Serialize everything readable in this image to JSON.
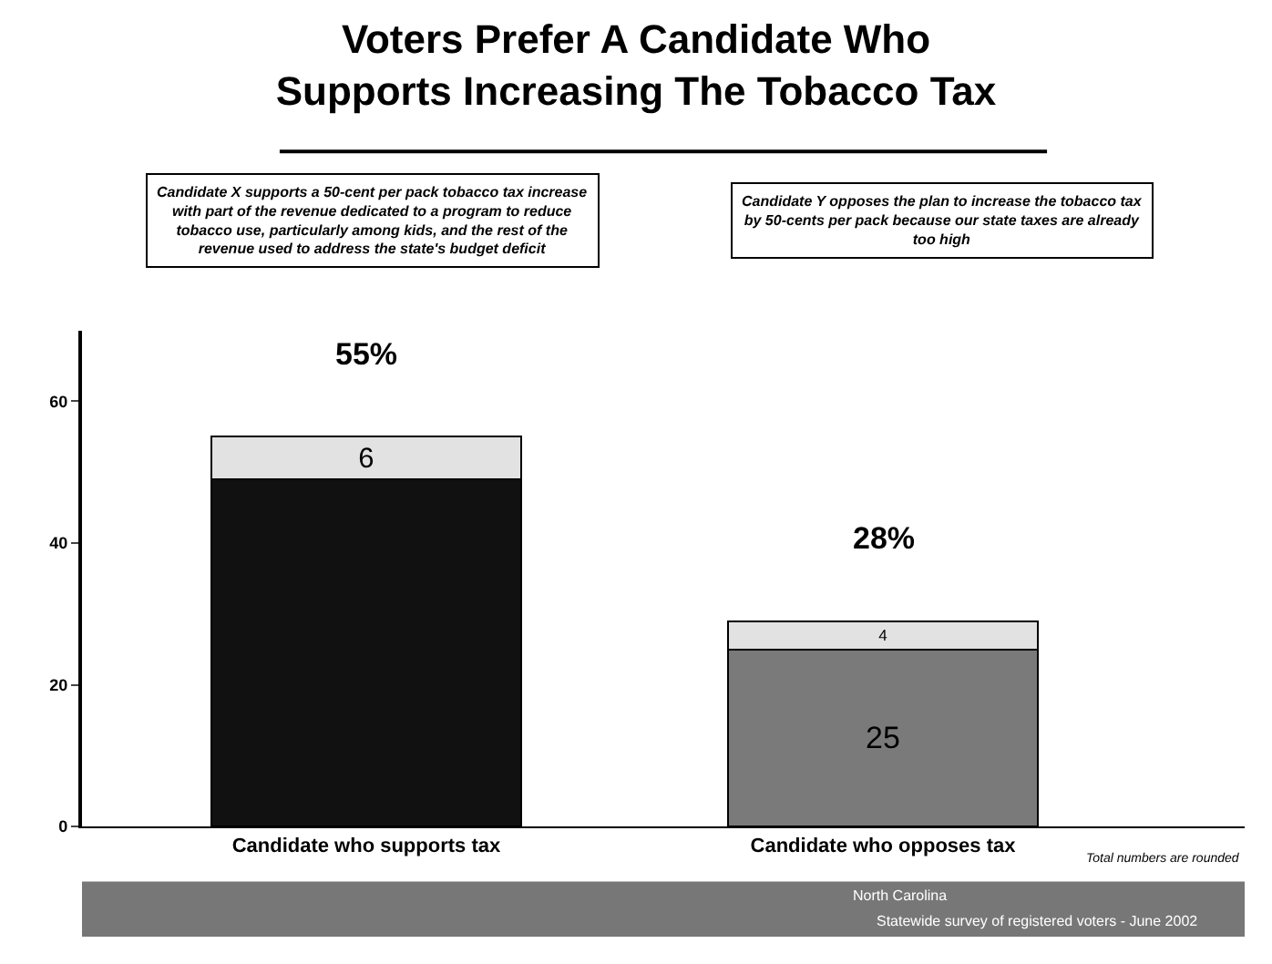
{
  "chart_data": {
    "type": "bar",
    "stacked": true,
    "title": "Voters Prefer A Candidate Who Supports Increasing The Tobacco Tax",
    "categories": [
      "Candidate who supports tax",
      "Candidate who opposes tax"
    ],
    "series": [
      {
        "colors": [
          "#111111",
          "#7a7a7a"
        ],
        "values": [
          49,
          25
        ],
        "value_labels": [
          null,
          "25"
        ]
      },
      {
        "colors": [
          "#e2e2e2",
          "#e2e2e2"
        ],
        "values": [
          6,
          4
        ],
        "value_labels": [
          "6",
          "4"
        ]
      }
    ],
    "totals": [
      "55%",
      "28%"
    ],
    "ylim": [
      0,
      70
    ],
    "yticks": [
      0,
      20,
      40,
      60
    ],
    "grid": false,
    "annotations": [
      "Candidate X supports a 50-cent per pack tobacco tax increase with part of the revenue dedicated to a program to reduce tobacco use, particularly among kids, and the rest of the revenue used to address the state's budget deficit",
      "Candidate Y opposes the plan to increase the tobacco tax by 50-cents per pack because our state taxes are already too high",
      "Total numbers are rounded",
      "North Carolina",
      "Statewide survey of registered voters - June 2002"
    ]
  }
}
